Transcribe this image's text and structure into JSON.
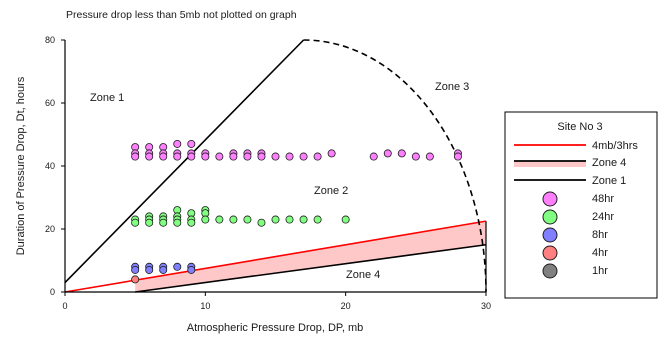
{
  "chart_data": {
    "type": "scatter",
    "note": "Pressure drop less than 5mb not plotted on graph",
    "xlabel": "Atmospheric Pressure Drop, DP, mb",
    "ylabel": "Duration of Pressure Drop, Dt, hours",
    "xlim": [
      0,
      30
    ],
    "ylim": [
      0,
      80
    ],
    "xticks": [
      "0",
      "10",
      "20",
      "30"
    ],
    "yticks": [
      "0",
      "20",
      "40",
      "60",
      "80"
    ],
    "grid": false,
    "legend": {
      "title": "Site No 3",
      "placement": "right",
      "entries": [
        {
          "label": "4mb/3hrs",
          "kind": "line",
          "color": "#ff0000"
        },
        {
          "label": "Zone 4",
          "kind": "band",
          "color": "#000000",
          "fill": "#ffc8c8"
        },
        {
          "label": "Zone 1",
          "kind": "line",
          "color": "#000000"
        },
        {
          "label": "48hr",
          "kind": "marker",
          "color": "#ff80ff"
        },
        {
          "label": "24hr",
          "kind": "marker",
          "color": "#80ff80"
        },
        {
          "label": "8hr",
          "kind": "marker",
          "color": "#8080ff"
        },
        {
          "label": "4hr",
          "kind": "marker",
          "color": "#ff8080"
        },
        {
          "label": "1hr",
          "kind": "marker",
          "color": "#808080"
        }
      ]
    },
    "zone_labels": [
      "Zone 1",
      "Zone 2",
      "Zone 3",
      "Zone 4"
    ],
    "lines": {
      "rate_4mb_3hrs": {
        "x": [
          0,
          30
        ],
        "y": [
          0,
          22.5
        ],
        "color": "#ff0000"
      },
      "zone1_boundary": {
        "x": [
          0,
          17
        ],
        "y": [
          3,
          80
        ],
        "color": "#000000"
      },
      "zone4_boundary": {
        "x": [
          5,
          30
        ],
        "y": [
          0,
          15
        ],
        "color": "#000000"
      },
      "zone3_arc": {
        "center": [
          17,
          0
        ],
        "radius_x": 13,
        "radius_y": 80,
        "from_x": 17,
        "to_x": 30,
        "color": "#000000",
        "dashed": true
      }
    },
    "zone4_fill": {
      "color": "#ffc8c8"
    },
    "series": [
      {
        "name": "48hr",
        "x": [
          5,
          5,
          5,
          6,
          6,
          6,
          7,
          7,
          7,
          8,
          8,
          8,
          9,
          9,
          9,
          10,
          10,
          11,
          12,
          12,
          13,
          13,
          14,
          14,
          15,
          16,
          17,
          18,
          19,
          22,
          23,
          24,
          25,
          26,
          28,
          28
        ],
        "y": [
          46,
          44,
          43,
          46,
          44,
          43,
          46,
          44,
          43,
          47,
          44,
          43,
          47,
          44,
          43,
          44,
          43,
          43,
          44,
          43,
          44,
          43,
          44,
          43,
          43,
          43,
          43,
          43,
          44,
          43,
          44,
          44,
          43,
          43,
          44,
          43
        ]
      },
      {
        "name": "24hr",
        "x": [
          5,
          5,
          6,
          6,
          6,
          7,
          7,
          7,
          8,
          8,
          8,
          8,
          9,
          9,
          9,
          10,
          10,
          10,
          11,
          12,
          13,
          14,
          15,
          16,
          17,
          18,
          20
        ],
        "y": [
          23,
          22,
          24,
          23,
          22,
          24,
          23,
          22,
          26,
          24,
          23,
          22,
          25,
          23,
          22,
          26,
          25,
          23,
          23,
          23,
          23,
          22,
          23,
          23,
          23,
          23,
          23
        ]
      },
      {
        "name": "8hr",
        "x": [
          5,
          5,
          6,
          6,
          7,
          7,
          8,
          9,
          9
        ],
        "y": [
          8,
          7,
          8,
          7,
          8,
          7,
          8,
          8,
          7
        ]
      },
      {
        "name": "4hr",
        "x": [
          5
        ],
        "y": [
          4
        ]
      },
      {
        "name": "1hr",
        "x": [],
        "y": []
      }
    ]
  }
}
